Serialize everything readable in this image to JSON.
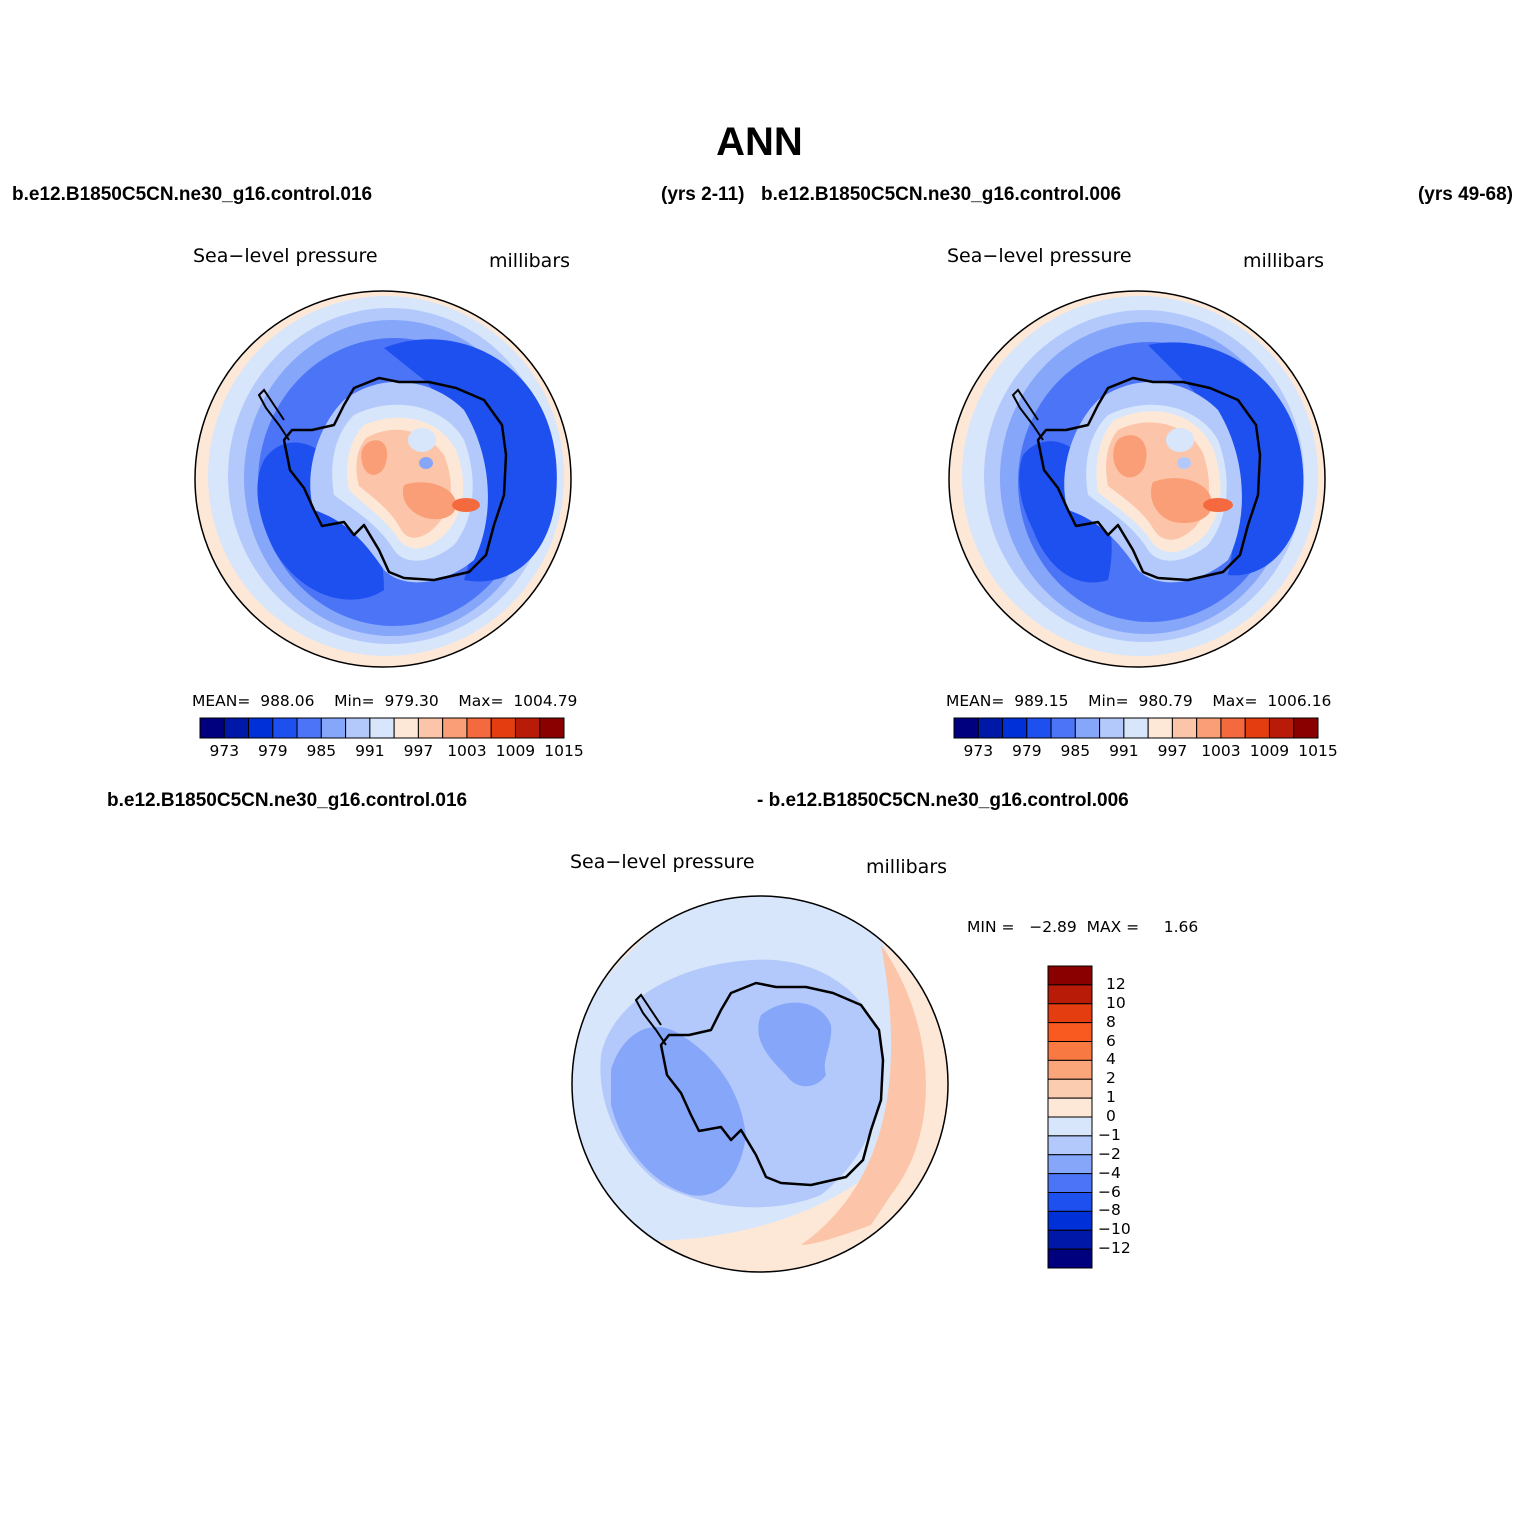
{
  "title": "ANN",
  "top": {
    "case1": "b.e12.B1850C5CN.ne30_g16.control.016",
    "years1": "(yrs 2-11)",
    "case2": "b.e12.B1850C5CN.ne30_g16.control.006",
    "years2": "(yrs 49-68)"
  },
  "bottom": {
    "case1": "b.e12.B1850C5CN.ne30_g16.control.016",
    "case2": "- b.e12.B1850C5CN.ne30_g16.control.006"
  },
  "panels": [
    {
      "title": "Sea−level pressure",
      "units": "millibars",
      "stats": "MEAN=  988.06    Min=  979.30    Max=  1004.79"
    },
    {
      "title": "Sea−level pressure",
      "units": "millibars",
      "stats": "MEAN=  989.15    Min=  980.79    Max=  1006.16"
    }
  ],
  "diff_panel": {
    "title": "Sea−level pressure",
    "units": "millibars",
    "stats": "MIN =   −2.89  MAX =     1.66"
  },
  "abs_colorbar": {
    "labels": [
      "973",
      "979",
      "985",
      "991",
      "997",
      "1003",
      "1009",
      "1015"
    ],
    "colors": [
      "#00007f",
      "#0018a8",
      "#0030d8",
      "#1e50f0",
      "#4c74f7",
      "#86a6fa",
      "#b3c9fb",
      "#d7e6fb",
      "#fde8d8",
      "#fcc5a9",
      "#fa9e77",
      "#f46a3e",
      "#e43d10",
      "#b81c08",
      "#8a0000"
    ]
  },
  "diff_colorbar": {
    "labels": [
      "12",
      "10",
      "8",
      "6",
      "4",
      "2",
      "1",
      "0",
      "−1",
      "−2",
      "−4",
      "−6",
      "−8",
      "−10",
      "−12"
    ],
    "colors": [
      "#8a0000",
      "#b81c08",
      "#e43d10",
      "#f85a20",
      "#f87a42",
      "#fba57a",
      "#fcccb0",
      "#fde8d8",
      "#d7e6fb",
      "#b3c9fb",
      "#86a6fa",
      "#4c74f7",
      "#1e50f0",
      "#0030d8",
      "#0018a8",
      "#00007f"
    ]
  },
  "map_palette": {
    "outer_warm": "#fde8d8",
    "ring_light": "#d7e6fb",
    "ring_mid": "#b3c9fb",
    "ring_blue": "#86a6fa",
    "ring_strong": "#4c74f7",
    "ring_deep": "#1e50f0",
    "warm1": "#fcc5a9",
    "warm2": "#fa9e77",
    "warm3": "#f46a3e"
  }
}
